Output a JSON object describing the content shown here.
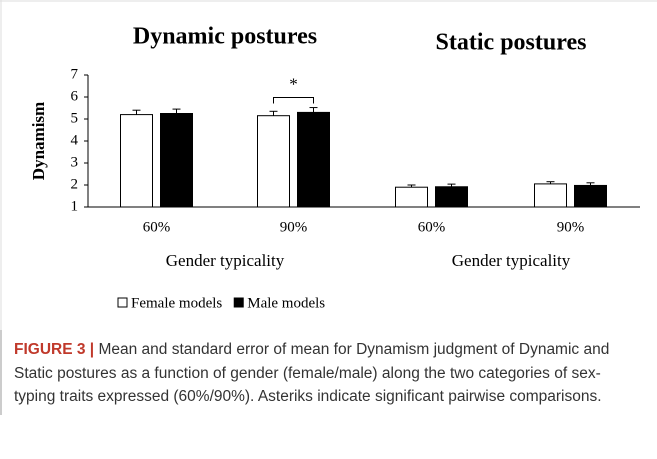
{
  "chart_data": {
    "type": "bar",
    "ylabel": "Dynamism",
    "ylim": [
      1,
      7
    ],
    "yticks": [
      1,
      2,
      3,
      4,
      5,
      6,
      7
    ],
    "series": [
      {
        "name": "Female models",
        "color": "#ffffff"
      },
      {
        "name": "Male models",
        "color": "#000000"
      }
    ],
    "panels": [
      {
        "title": "Dynamic postures",
        "xlabel": "Gender typicality",
        "categories": [
          "60%",
          "90%"
        ],
        "series": [
          {
            "values": [
              5.2,
              5.15
            ],
            "errors": [
              0.2,
              0.2
            ]
          },
          {
            "values": [
              5.25,
              5.3
            ],
            "errors": [
              0.2,
              0.22
            ]
          }
        ],
        "annotation": "*"
      },
      {
        "title": "Static postures",
        "xlabel": "Gender typicality",
        "categories": [
          "60%",
          "90%"
        ],
        "series": [
          {
            "values": [
              1.9,
              2.05
            ],
            "errors": [
              0.1,
              0.1
            ]
          },
          {
            "values": [
              1.92,
              1.98
            ],
            "errors": [
              0.12,
              0.12
            ]
          }
        ]
      }
    ]
  },
  "caption": {
    "label": "FIGURE 3 |",
    "text": "Mean and standard error of mean for Dynamism judgment of Dynamic and Static postures as a function of gender (female/male) along the two categories of sex-typing traits expressed (60%/90%). Asteriks indicate significant pairwise comparisons."
  }
}
